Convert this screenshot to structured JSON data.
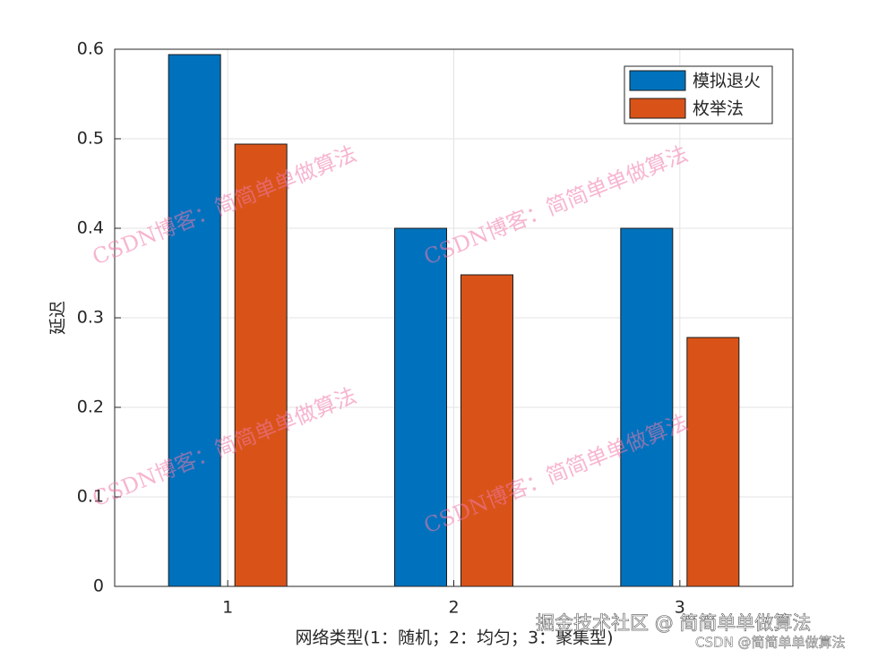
{
  "chart_data": {
    "type": "bar",
    "x_label": "网络类型(1：随机；2：均匀；3：聚集型)",
    "y_label": "延迟",
    "categories": [
      "1",
      "2",
      "3"
    ],
    "series": [
      {
        "name": "模拟退火",
        "color": "#0072bd",
        "values": [
          0.594,
          0.4,
          0.4
        ]
      },
      {
        "name": "枚举法",
        "color": "#d95319",
        "values": [
          0.494,
          0.348,
          0.278
        ]
      }
    ],
    "ylim": [
      0,
      0.6
    ],
    "yticks": [
      0,
      0.1,
      0.2,
      0.3,
      0.4,
      0.5,
      0.6
    ],
    "grid": true,
    "legend": "top-right"
  },
  "watermark": "CSDN博客：简简单单做算法",
  "footer": [
    "掘金技术社区 @ 简简单单做算法",
    "CSDN @简简单单做算法"
  ]
}
